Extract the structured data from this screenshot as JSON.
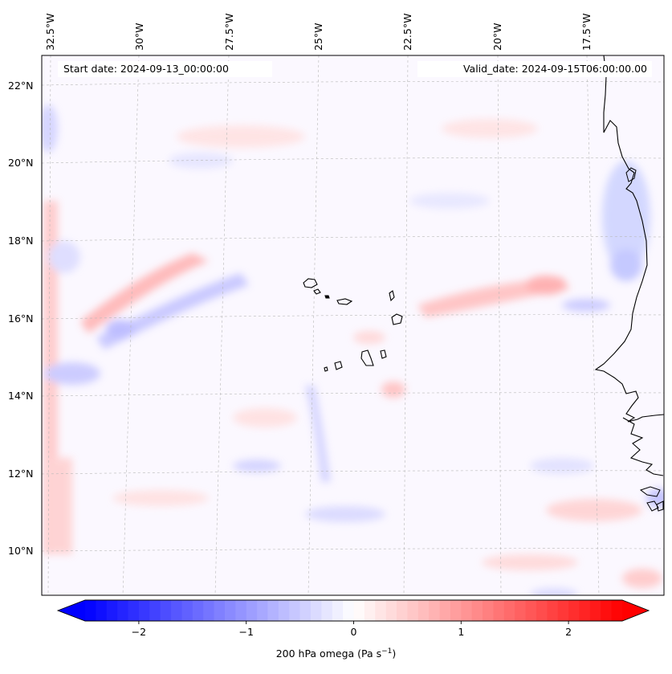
{
  "map": {
    "start_date": "Start date: 2024-09-13_00:00:00",
    "valid_date": "Valid_date: 2024-09-15T06:00:00.00",
    "longitude_labels": [
      {
        "lon": -32.5,
        "text": "32.5°W"
      },
      {
        "lon": -30.0,
        "text": "30°W"
      },
      {
        "lon": -27.5,
        "text": "27.5°W"
      },
      {
        "lon": -25.0,
        "text": "25°W"
      },
      {
        "lon": -22.5,
        "text": "22.5°W"
      },
      {
        "lon": -20.0,
        "text": "20°W"
      },
      {
        "lon": -17.5,
        "text": "17.5°W"
      }
    ],
    "latitude_labels": [
      {
        "lat": 22,
        "text": "22°N"
      },
      {
        "lat": 20,
        "text": "20°N"
      },
      {
        "lat": 18,
        "text": "18°N"
      },
      {
        "lat": 16,
        "text": "16°N"
      },
      {
        "lat": 14,
        "text": "14°N"
      },
      {
        "lat": 12,
        "text": "12°N"
      },
      {
        "lat": 10,
        "text": "10°N"
      }
    ],
    "field": "200 hPa omega",
    "region": {
      "lon_min": -33.0,
      "lon_max": -15.0,
      "lat_min": 8.9,
      "lat_max": 22.8
    }
  },
  "colorbar": {
    "label": "200 hPa omega (Pa s",
    "label_sup": "−1",
    "label_close": ")",
    "range": [
      -2.5,
      2.5
    ],
    "ticks": [
      {
        "value": -2,
        "text": "−2"
      },
      {
        "value": -1,
        "text": "−1"
      },
      {
        "value": 0,
        "text": "0"
      },
      {
        "value": 1,
        "text": "1"
      },
      {
        "value": 2,
        "text": "2"
      }
    ],
    "colormap": "bwr",
    "color_low": "#0000ff",
    "color_mid": "#ffffff",
    "color_high": "#ff0000"
  }
}
